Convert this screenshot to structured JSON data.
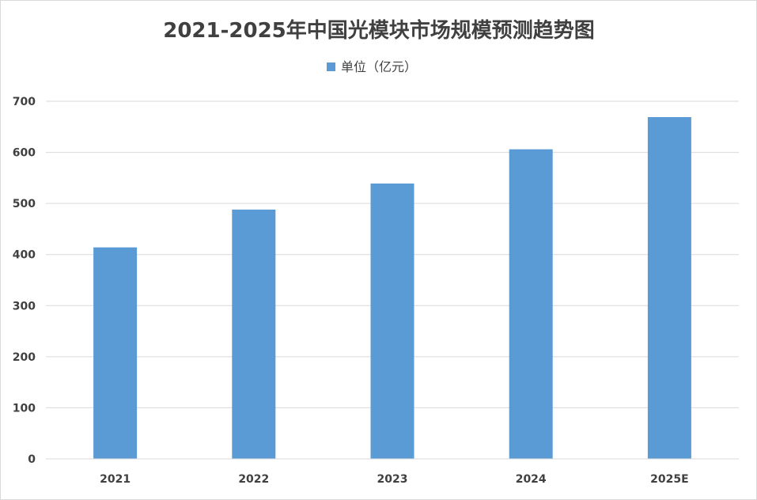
{
  "chart_data": {
    "type": "bar",
    "title": "2021-2025年中国光模块市场规模预测趋势图",
    "categories": [
      "2021",
      "2022",
      "2023",
      "2024",
      "2025E"
    ],
    "series": [
      {
        "name": "单位（亿元）",
        "values": [
          414,
          488,
          539,
          606,
          669
        ],
        "color": "#5b9bd5"
      }
    ],
    "ylim": [
      0,
      700
    ],
    "yticks": [
      0,
      100,
      200,
      300,
      400,
      500,
      600,
      700
    ],
    "grid": true,
    "legend_position": "top-center",
    "colors": {
      "bar": "#5b9bd5",
      "grid": "#d9d9d9",
      "text": "#404040"
    }
  }
}
